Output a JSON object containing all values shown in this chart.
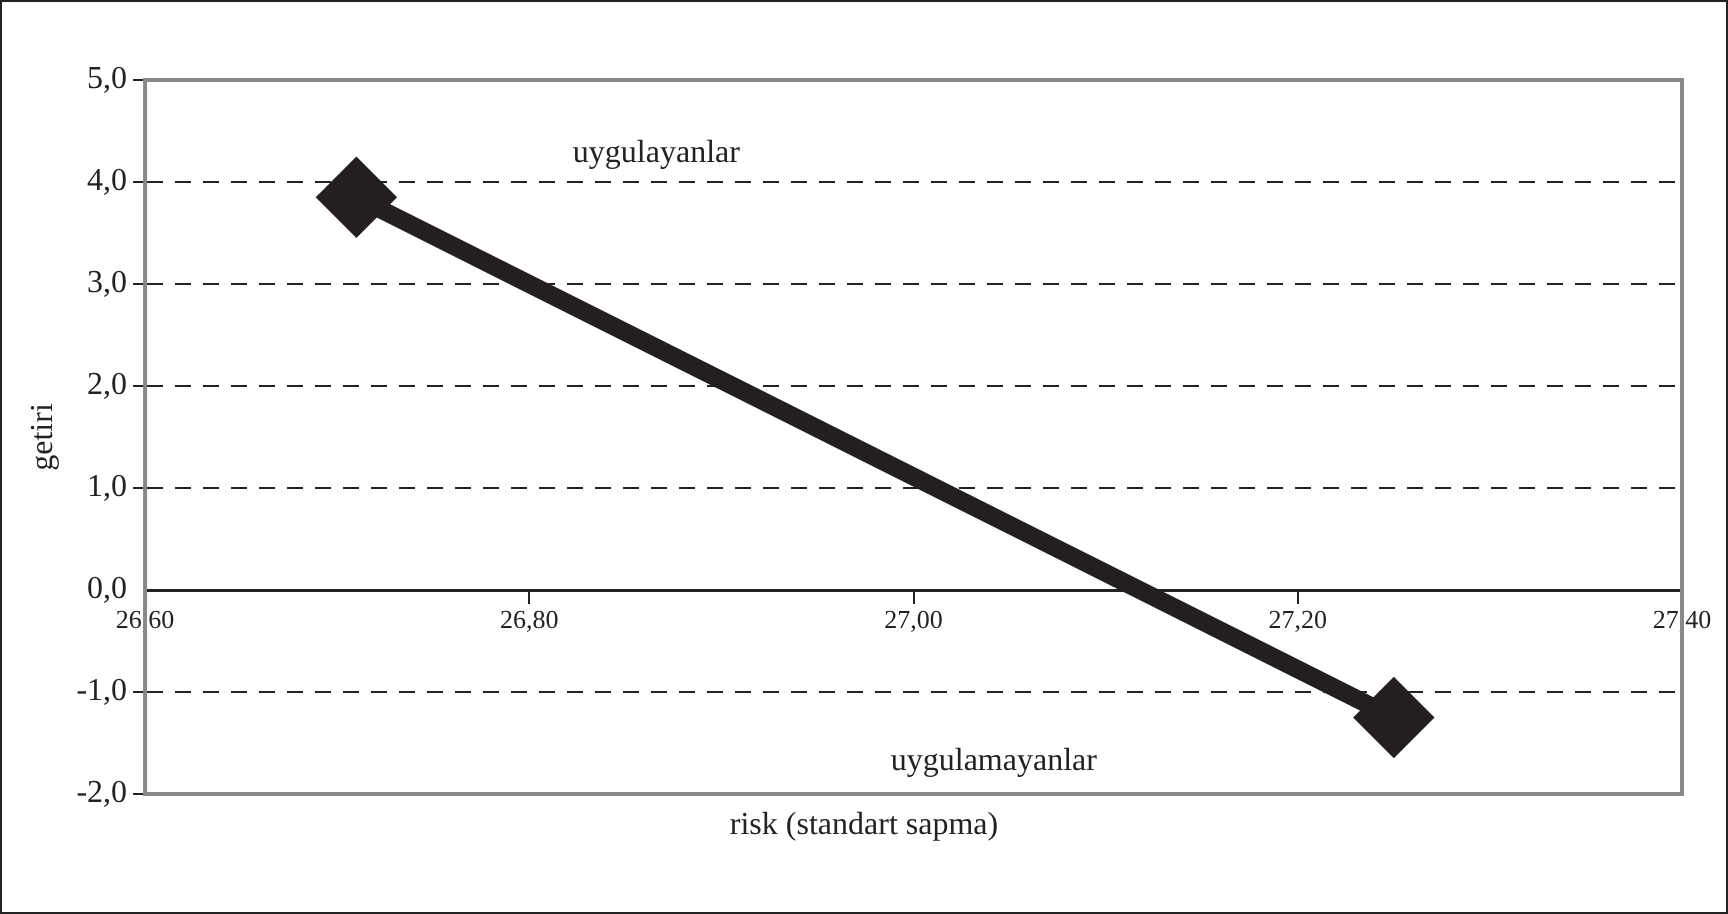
{
  "chart_data": {
    "type": "line",
    "xlabel": "risk (standart sapma)",
    "ylabel": "getiri",
    "x": [
      26.71,
      27.25
    ],
    "series": [
      {
        "color": "#231f20",
        "values": [
          3.85,
          -1.25
        ]
      }
    ],
    "xlim": [
      26.6,
      27.4
    ],
    "xticks": [
      {
        "value": 26.6,
        "label": "26,60"
      },
      {
        "value": 26.8,
        "label": "26,80"
      },
      {
        "value": 27.0,
        "label": "27,00"
      },
      {
        "value": 27.2,
        "label": "27,20"
      },
      {
        "value": 27.4,
        "label": "27,40"
      }
    ],
    "ylim": [
      -2,
      5
    ],
    "yticks": [
      {
        "value": -2,
        "label": "-2,0"
      },
      {
        "value": -1,
        "label": "-1,0"
      },
      {
        "value": 0,
        "label": "0,0"
      },
      {
        "value": 1,
        "label": "1,0"
      },
      {
        "value": 2,
        "label": "2,0"
      },
      {
        "value": 3,
        "label": "3,0"
      },
      {
        "value": 4,
        "label": "4,0"
      },
      {
        "value": 5,
        "label": "5,0"
      }
    ],
    "annotations": [
      "uygulayanlar",
      "uygulamayanlar"
    ],
    "grid": "y",
    "legend": false,
    "marker": "diamond",
    "line_style": "solid"
  }
}
